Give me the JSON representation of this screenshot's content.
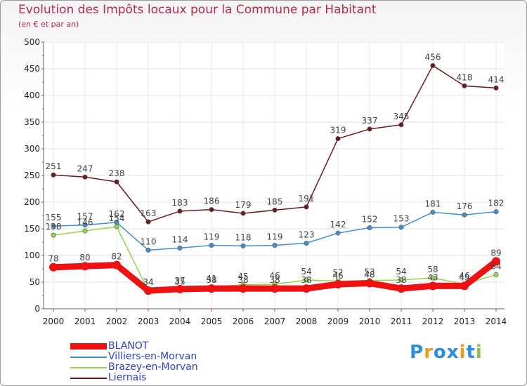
{
  "chart_data": {
    "type": "line",
    "title": "Evolution des Impôts locaux pour la Commune par Habitant",
    "subtitle": "(en € et par an)",
    "xlabel": "",
    "ylabel": "",
    "ylim": [
      0,
      500
    ],
    "yticks": [
      "0",
      "50",
      "100",
      "150",
      "200",
      "250",
      "300",
      "350",
      "400",
      "450",
      "500"
    ],
    "categories": [
      "2000",
      "2001",
      "2002",
      "2003",
      "2004",
      "2005",
      "2006",
      "2007",
      "2008",
      "2009",
      "2010",
      "2011",
      "2012",
      "2013",
      "2014"
    ],
    "grid": true,
    "legend_position": "bottom-left",
    "series": [
      {
        "name": "Liernais",
        "color": "#6b1a20",
        "values": [
          251,
          247,
          238,
          163,
          183,
          186,
          179,
          185,
          191,
          319,
          337,
          345,
          456,
          418,
          414
        ],
        "labels": [
          "251",
          "247",
          "238",
          "163",
          "183",
          "186",
          "179",
          "185",
          "191",
          "319",
          "337",
          "345",
          "456",
          "418",
          "414"
        ]
      },
      {
        "name": "Villiers-en-Morvan",
        "color": "#3f8fd0",
        "values": [
          155,
          157,
          162,
          110,
          114,
          119,
          118,
          119,
          123,
          142,
          152,
          153,
          181,
          176,
          182
        ],
        "labels": [
          "155",
          "157",
          "162",
          "110",
          "114",
          "119",
          "118",
          "119",
          "123",
          "142",
          "152",
          "153",
          "181",
          "176",
          "182"
        ]
      },
      {
        "name": "Brazey-en-Morvan",
        "color": "#8fd84a",
        "values": [
          138,
          146,
          154,
          34,
          35,
          41,
          45,
          46,
          54,
          52,
          53,
          54,
          58,
          46,
          64
        ],
        "labels": [
          "138",
          "146",
          "154",
          "34",
          "35",
          "41",
          "45",
          "46",
          "54",
          "52",
          "53",
          "54",
          "58",
          "46",
          "64"
        ]
      },
      {
        "name": "BLANOT",
        "color": "#ee1111",
        "values": [
          78,
          80,
          82,
          34,
          37,
          38,
          38,
          38,
          38,
          46,
          48,
          38,
          43,
          43,
          89
        ],
        "labels": [
          "78",
          "80",
          "82",
          "34",
          "37",
          "38",
          "38",
          "38",
          "38",
          "46",
          "48",
          "38",
          "43",
          "43",
          "89"
        ]
      }
    ],
    "legend": [
      "BLANOT",
      "Villiers-en-Morvan",
      "Brazey-en-Morvan",
      "Liernais"
    ]
  },
  "logo": {
    "letters": [
      "P",
      "r",
      "o",
      "x",
      "i",
      "t",
      "i"
    ],
    "colors": [
      "#2a8fe0",
      "#f09a1c",
      "#2a8fe0",
      "#2a8fe0",
      "#f09a1c",
      "#2a8fe0",
      "#8bc34a"
    ]
  }
}
